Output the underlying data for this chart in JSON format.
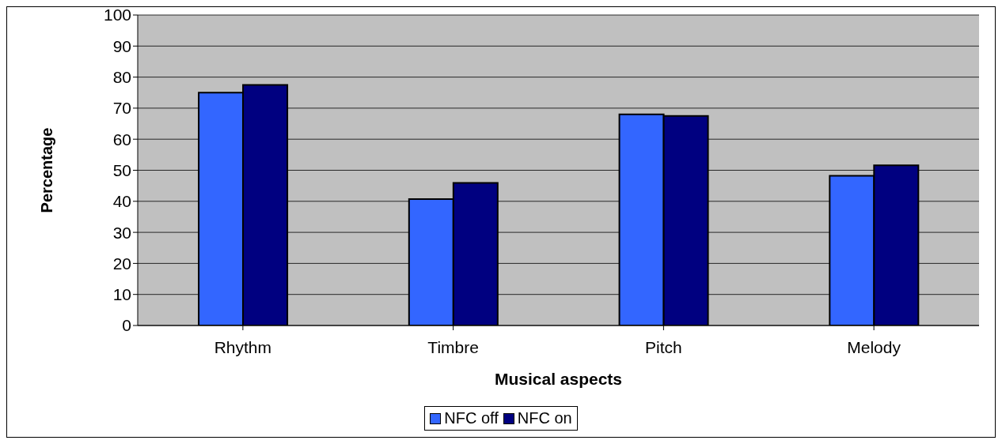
{
  "chart_data": {
    "type": "bar",
    "xlabel": "Musical aspects",
    "ylabel": "Percentage",
    "categories": [
      "Rhythm",
      "Timbre",
      "Pitch",
      "Melody"
    ],
    "series": [
      {
        "name": "NFC off",
        "color": "#3366ff",
        "values": [
          75,
          40.7,
          68,
          48.2
        ]
      },
      {
        "name": "NFC on",
        "color": "#000080",
        "values": [
          77.5,
          45.9,
          67.5,
          51.6
        ]
      }
    ],
    "ylim": [
      0,
      100
    ],
    "yticks": [
      0,
      10,
      20,
      30,
      40,
      50,
      60,
      70,
      80,
      90,
      100
    ],
    "grid": "y",
    "legend": "bottom"
  }
}
